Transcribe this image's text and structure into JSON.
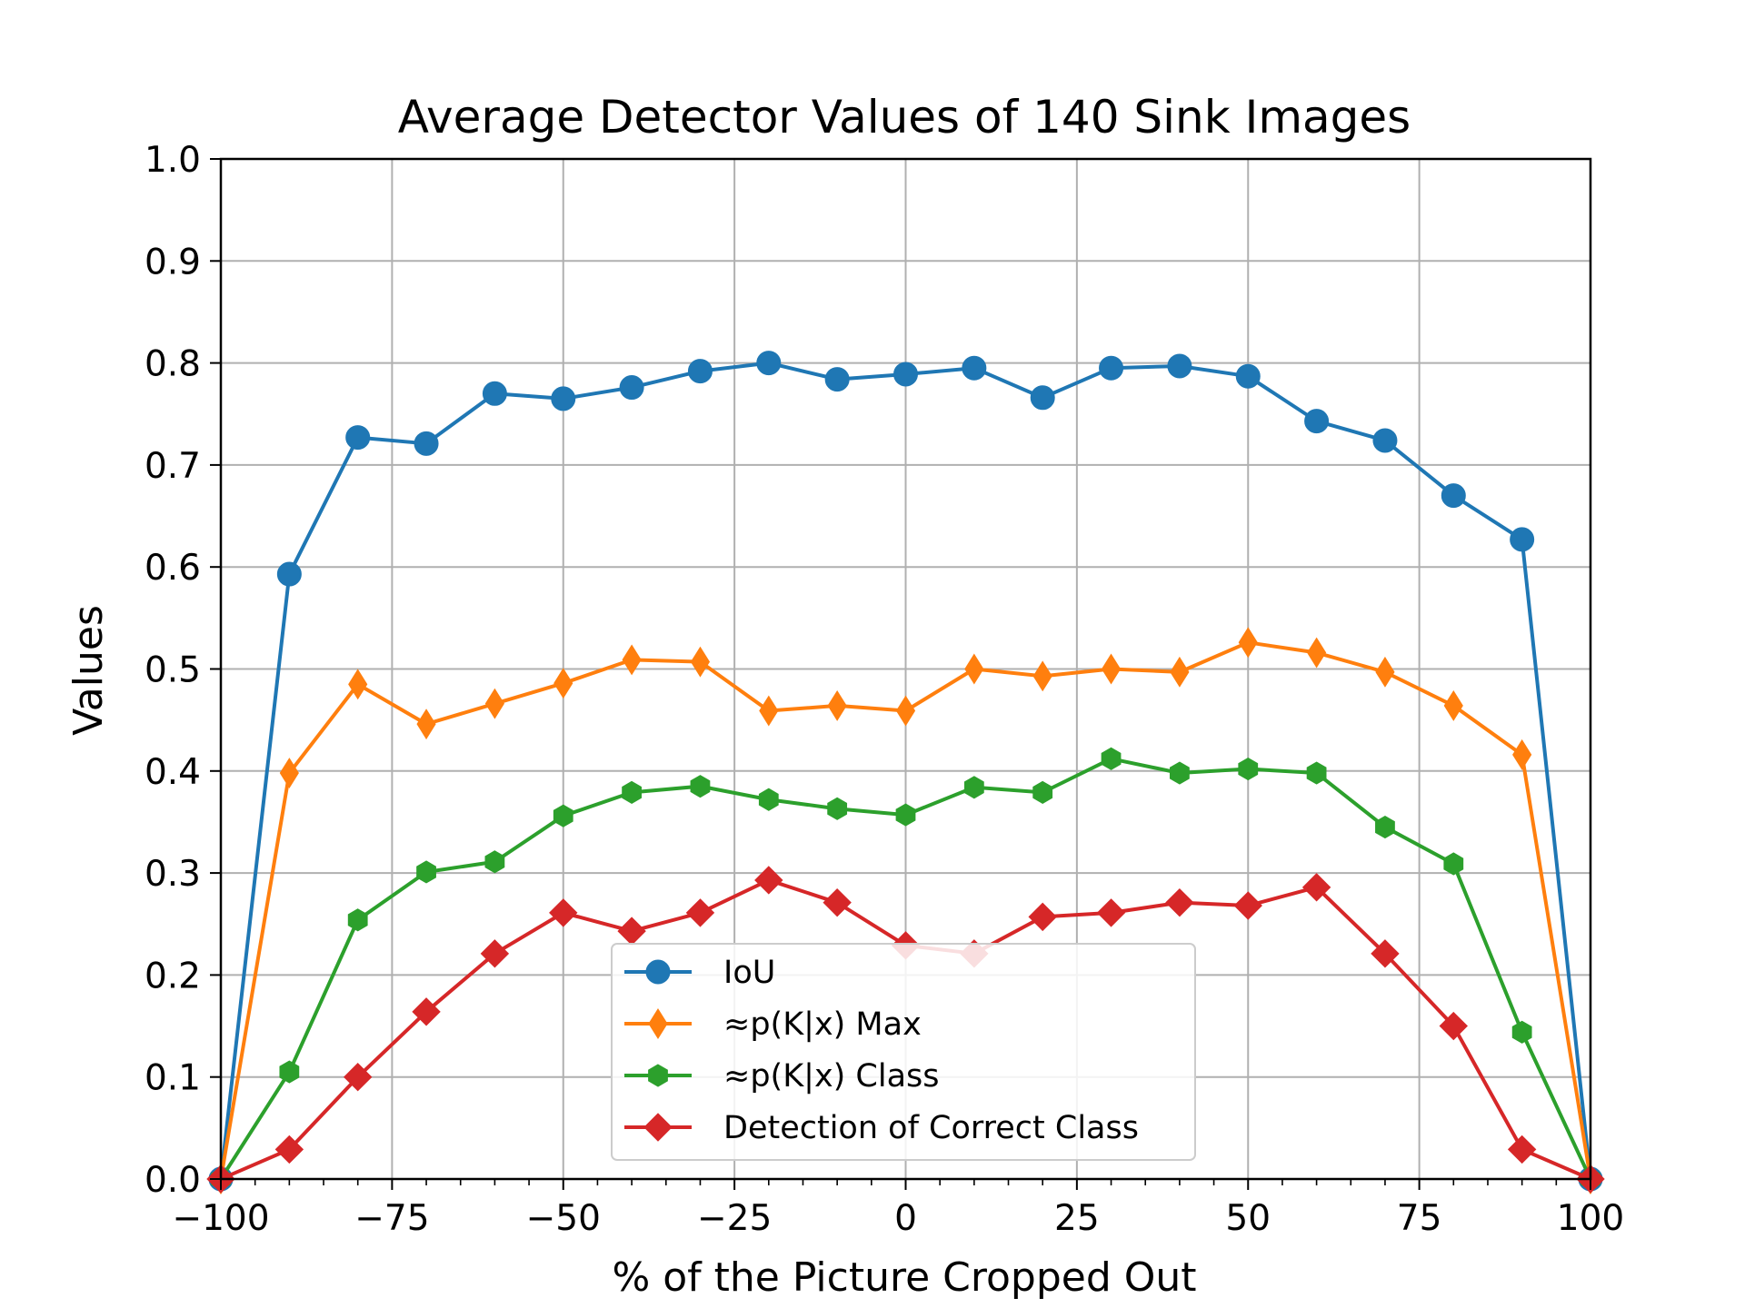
{
  "chart_data": {
    "type": "line",
    "title": "Average Detector Values of 140 Sink Images",
    "xlabel": "% of the Picture Cropped Out",
    "ylabel": "Values",
    "xlim": [
      -100,
      100
    ],
    "ylim": [
      0.0,
      1.0
    ],
    "x_ticks": [
      -100,
      -75,
      -50,
      -25,
      0,
      25,
      50,
      75,
      100
    ],
    "x_tick_labels": [
      "−100",
      "−75",
      "−50",
      "−25",
      "0",
      "25",
      "50",
      "75",
      "100"
    ],
    "y_ticks": [
      0.0,
      0.1,
      0.2,
      0.3,
      0.4,
      0.5,
      0.6,
      0.7,
      0.8,
      0.9,
      1.0
    ],
    "y_tick_labels": [
      "0.0",
      "0.1",
      "0.2",
      "0.3",
      "0.4",
      "0.5",
      "0.6",
      "0.7",
      "0.8",
      "0.9",
      "1.0"
    ],
    "grid": true,
    "legend_position": "lower-center",
    "x": [
      -100,
      -90,
      -80,
      -70,
      -60,
      -50,
      -40,
      -30,
      -20,
      -10,
      0,
      10,
      20,
      30,
      40,
      50,
      60,
      70,
      80,
      90,
      100
    ],
    "series": [
      {
        "name": "IoU",
        "color": "#1f77b4",
        "marker": "circle",
        "values": [
          0.0,
          0.593,
          0.727,
          0.721,
          0.77,
          0.765,
          0.776,
          0.792,
          0.8,
          0.784,
          0.789,
          0.795,
          0.766,
          0.795,
          0.797,
          0.787,
          0.743,
          0.724,
          0.67,
          0.627,
          0.0
        ]
      },
      {
        "name": "≈p(K|x) Max",
        "color": "#ff7f0e",
        "marker": "thin-diamond",
        "values": [
          0.0,
          0.398,
          0.485,
          0.446,
          0.466,
          0.486,
          0.509,
          0.507,
          0.459,
          0.464,
          0.459,
          0.5,
          0.493,
          0.5,
          0.497,
          0.526,
          0.516,
          0.497,
          0.464,
          0.416,
          0.0
        ]
      },
      {
        "name": "≈p(K|x) Class",
        "color": "#2ca02c",
        "marker": "hexagon",
        "values": [
          0.0,
          0.105,
          0.254,
          0.301,
          0.311,
          0.356,
          0.379,
          0.385,
          0.372,
          0.363,
          0.357,
          0.384,
          0.379,
          0.412,
          0.398,
          0.402,
          0.398,
          0.345,
          0.309,
          0.144,
          0.0
        ]
      },
      {
        "name": "Detection of Correct Class",
        "color": "#d62728",
        "marker": "diamond",
        "values": [
          0.0,
          0.029,
          0.1,
          0.164,
          0.221,
          0.261,
          0.243,
          0.261,
          0.293,
          0.271,
          0.229,
          0.221,
          0.257,
          0.261,
          0.271,
          0.268,
          0.286,
          0.221,
          0.15,
          0.029,
          0.0
        ]
      }
    ]
  }
}
